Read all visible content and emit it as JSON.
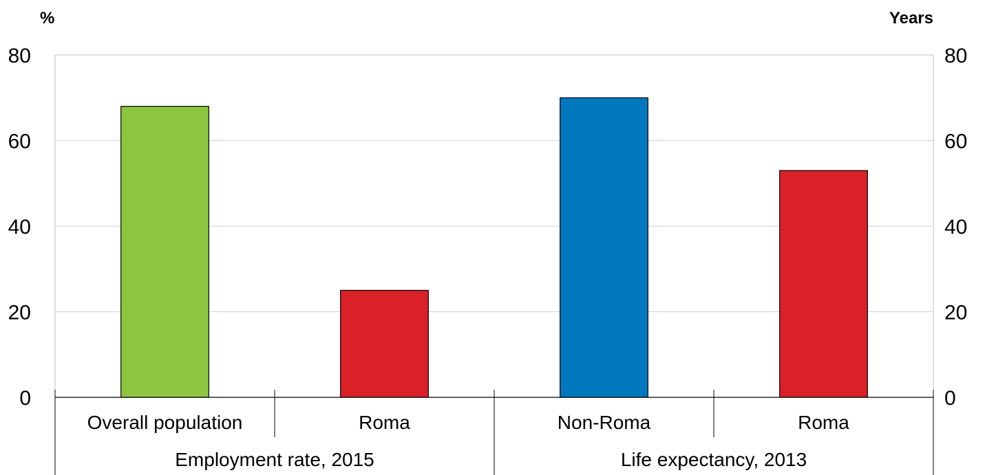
{
  "chart_data": {
    "type": "bar",
    "left_axis_label": "%",
    "right_axis_label": "Years",
    "ylim": [
      0,
      80
    ],
    "yticks": [
      0,
      20,
      40,
      60,
      80
    ],
    "grid": true,
    "groups": [
      {
        "label": "Employment rate, 2015",
        "categories": [
          "Overall population",
          "Roma"
        ],
        "values": [
          68,
          25
        ],
        "colors": [
          "#8DC63F",
          "#DA2128"
        ]
      },
      {
        "label": "Life expectancy, 2013",
        "categories": [
          "Non-Roma",
          "Roma"
        ],
        "values": [
          70,
          53
        ],
        "colors": [
          "#0078BE",
          "#DA2128"
        ]
      }
    ]
  }
}
